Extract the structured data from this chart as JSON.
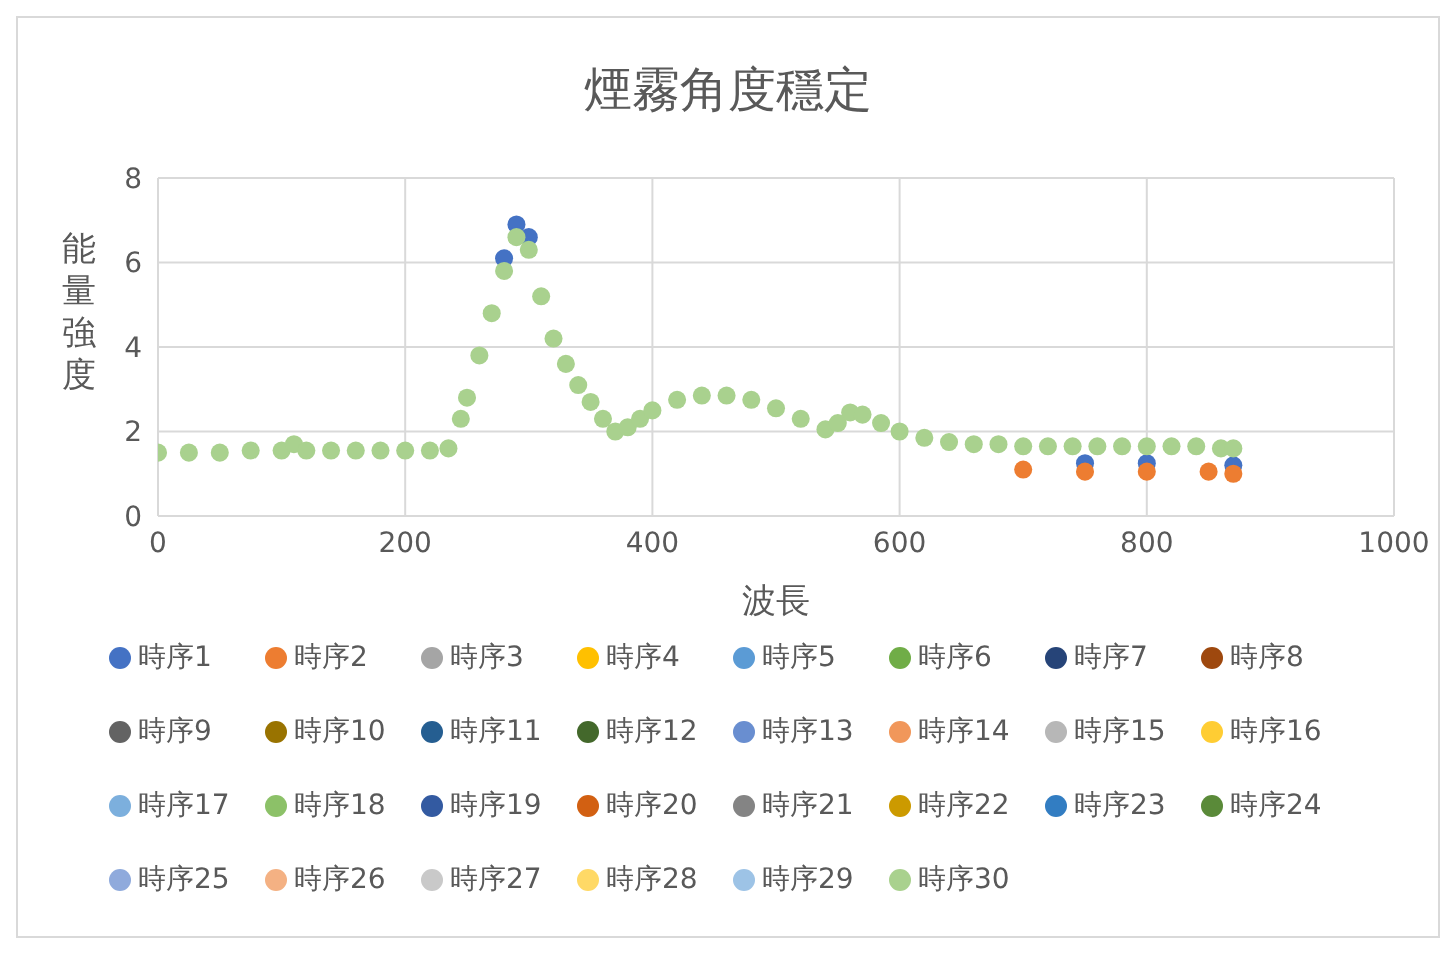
{
  "chart_data": {
    "type": "scatter",
    "title": "煙霧角度穩定",
    "xlabel": "波長",
    "ylabel": "能量強度",
    "xlim": [
      0,
      1000
    ],
    "xticks": [
      0,
      200,
      400,
      600,
      800,
      1000
    ],
    "ylim": [
      0,
      8
    ],
    "yticks": [
      0,
      2,
      4,
      6,
      8
    ],
    "grid": true,
    "legend": "bottom",
    "marker": "circle",
    "series": [
      {
        "name": "時序1",
        "color": "#4472c4",
        "x": [
          280,
          290,
          300,
          700,
          750,
          800,
          850,
          870
        ],
        "values": [
          6.1,
          6.9,
          6.6,
          null,
          1.25,
          1.25,
          null,
          1.2
        ]
      },
      {
        "name": "時序2",
        "color": "#ed7d31",
        "x": [
          700,
          750,
          800,
          850,
          870
        ],
        "values": [
          1.1,
          1.05,
          1.05,
          1.05,
          1.0
        ]
      },
      {
        "name": "時序3",
        "color": "#a5a5a5"
      },
      {
        "name": "時序4",
        "color": "#ffc000"
      },
      {
        "name": "時序5",
        "color": "#5b9bd5"
      },
      {
        "name": "時序6",
        "color": "#70ad47"
      },
      {
        "name": "時序7",
        "color": "#264478"
      },
      {
        "name": "時序8",
        "color": "#9e480e"
      },
      {
        "name": "時序9",
        "color": "#636363"
      },
      {
        "name": "時序10",
        "color": "#997300"
      },
      {
        "name": "時序11",
        "color": "#255e91"
      },
      {
        "name": "時序12",
        "color": "#43682b"
      },
      {
        "name": "時序13",
        "color": "#698ed0"
      },
      {
        "name": "時序14",
        "color": "#f1975a"
      },
      {
        "name": "時序15",
        "color": "#b7b7b7"
      },
      {
        "name": "時序16",
        "color": "#ffcd33"
      },
      {
        "name": "時序17",
        "color": "#7cafdd"
      },
      {
        "name": "時序18",
        "color": "#8cc168"
      },
      {
        "name": "時序19",
        "color": "#335aa1"
      },
      {
        "name": "時序20",
        "color": "#d26012"
      },
      {
        "name": "時序21",
        "color": "#848484"
      },
      {
        "name": "時序22",
        "color": "#cc9a00"
      },
      {
        "name": "時序23",
        "color": "#327dc2"
      },
      {
        "name": "時序24",
        "color": "#5a8a39"
      },
      {
        "name": "時序25",
        "color": "#8faadc"
      },
      {
        "name": "時序26",
        "color": "#f4b183"
      },
      {
        "name": "時序27",
        "color": "#c9c9c9"
      },
      {
        "name": "時序28",
        "color": "#ffd966"
      },
      {
        "name": "時序29",
        "color": "#9dc3e6"
      },
      {
        "name": "時序30",
        "color": "#a9d18e",
        "x": [
          0,
          25,
          50,
          75,
          100,
          110,
          120,
          140,
          160,
          180,
          200,
          220,
          235,
          245,
          250,
          260,
          270,
          280,
          290,
          300,
          310,
          320,
          330,
          340,
          350,
          360,
          370,
          380,
          390,
          400,
          420,
          440,
          460,
          480,
          500,
          520,
          540,
          550,
          560,
          570,
          585,
          600,
          620,
          640,
          660,
          680,
          700,
          720,
          740,
          760,
          780,
          800,
          820,
          840,
          860,
          870
        ],
        "values": [
          1.5,
          1.5,
          1.5,
          1.55,
          1.55,
          1.7,
          1.55,
          1.55,
          1.55,
          1.55,
          1.55,
          1.55,
          1.6,
          2.3,
          2.8,
          3.8,
          4.8,
          5.8,
          6.6,
          6.3,
          5.2,
          4.2,
          3.6,
          3.1,
          2.7,
          2.3,
          2.0,
          2.1,
          2.3,
          2.5,
          2.75,
          2.85,
          2.85,
          2.75,
          2.55,
          2.3,
          2.05,
          2.2,
          2.45,
          2.4,
          2.2,
          2.0,
          1.85,
          1.75,
          1.7,
          1.7,
          1.65,
          1.65,
          1.65,
          1.65,
          1.65,
          1.65,
          1.65,
          1.65,
          1.6,
          1.6
        ]
      }
    ]
  }
}
